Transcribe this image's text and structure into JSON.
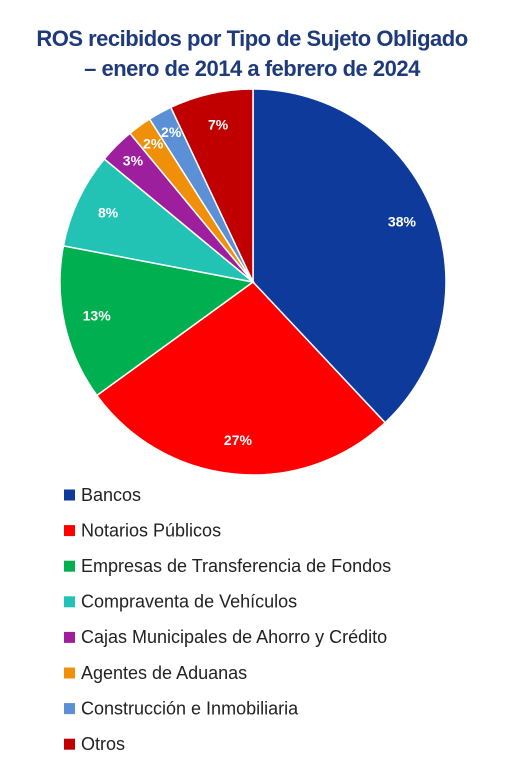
{
  "chart_data": {
    "type": "pie",
    "title": [
      "ROS recibidos por Tipo de Sujeto Obligado",
      "– enero de 2014 a febrero de 2024"
    ],
    "categories": [
      "Bancos",
      "Notarios Públicos",
      "Empresas de Transferencia de Fondos",
      "Compraventa de Vehículos",
      "Cajas Municipales de Ahorro y Crédito",
      "Agentes de Aduanas",
      "Construcción e Inmobiliaria",
      "Otros"
    ],
    "values": [
      38,
      27,
      13,
      8,
      3,
      2,
      2,
      7
    ],
    "value_labels": [
      "38%",
      "27%",
      "13%",
      "8%",
      "3%",
      "2%",
      "2%",
      "7%"
    ],
    "colors": [
      "#0e3a9c",
      "#ff0000",
      "#00b050",
      "#22c3b4",
      "#9e1f9e",
      "#f0900a",
      "#5b8fd6",
      "#c00000"
    ]
  }
}
